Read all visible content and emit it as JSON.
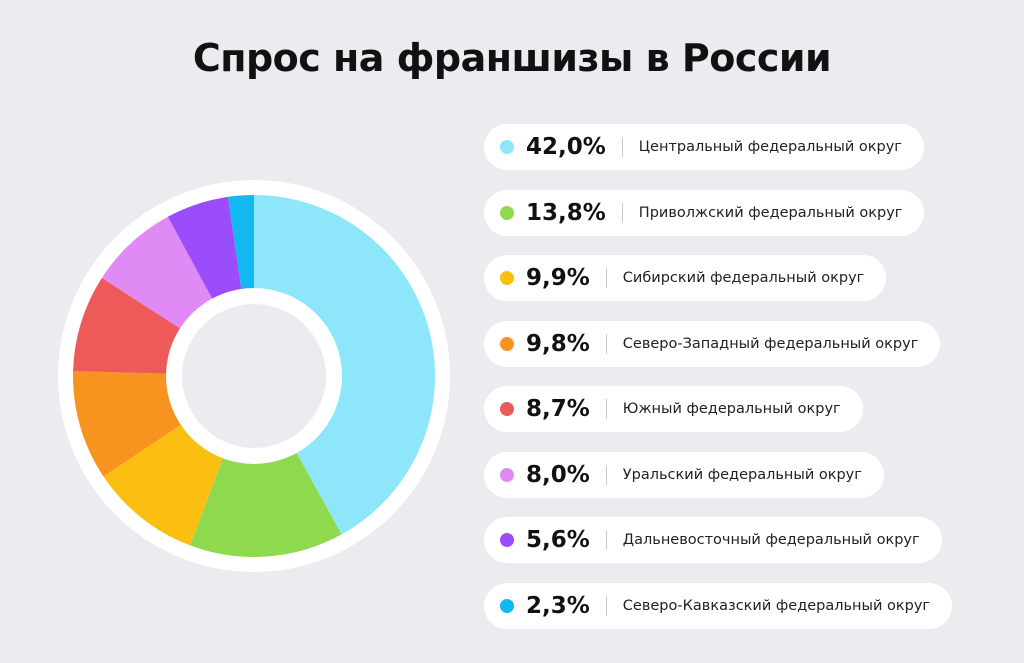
{
  "chart_data": {
    "type": "donut",
    "title": "Спрос на франшизы в России",
    "categories": [
      "Центральный федеральный округ",
      "Приволжский федеральный округ",
      "Сибирский федеральный округ",
      "Северо-Западный федеральный округ",
      "Южный федеральный округ",
      "Уральский федеральный округ",
      "Дальневосточный федеральный округ",
      "Северо-Кавказский федеральный округ"
    ],
    "values": [
      42.0,
      13.8,
      9.9,
      9.8,
      8.7,
      8.0,
      5.6,
      2.3
    ],
    "value_labels": [
      "42,0%",
      "13,8%",
      "9,9%",
      "9,8%",
      "8,7%",
      "8,0%",
      "5,6%",
      "2,3%"
    ],
    "colors": [
      "#8ee6fb",
      "#8fd94e",
      "#fbbf12",
      "#f7931e",
      "#ee5a5a",
      "#e08af5",
      "#9b4dfc",
      "#12b8f0"
    ]
  }
}
